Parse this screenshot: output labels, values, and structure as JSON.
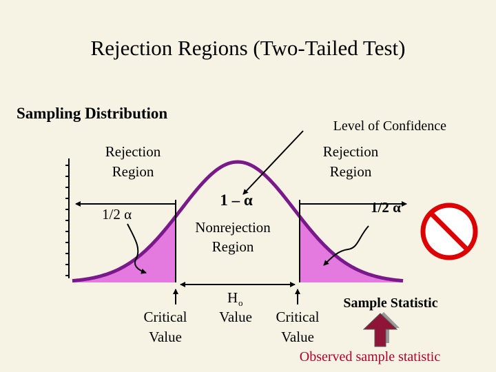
{
  "title": "Rejection Regions (Two-Tailed Test)",
  "sampling_distribution": "Sampling Distribution",
  "level_of_confidence": "Level of Confidence",
  "left_rejection_region": [
    "Rejection",
    "Region"
  ],
  "right_rejection_region": [
    "Rejection",
    "Region"
  ],
  "left_half_alpha": "1/2 α",
  "right_half_alpha": "1/2 α",
  "one_minus_alpha": "1 – α",
  "nonrejection_region": [
    "Nonrejection",
    "Region"
  ],
  "left_critical_value": [
    "Critical",
    "Value"
  ],
  "right_critical_value": [
    "Critical",
    "Value"
  ],
  "h0_value": {
    "symbol": "H",
    "subscript": "o",
    "label": "Value"
  },
  "sample_statistic": "Sample Statistic",
  "observed_sample_statistic": "Observed sample statistic"
}
